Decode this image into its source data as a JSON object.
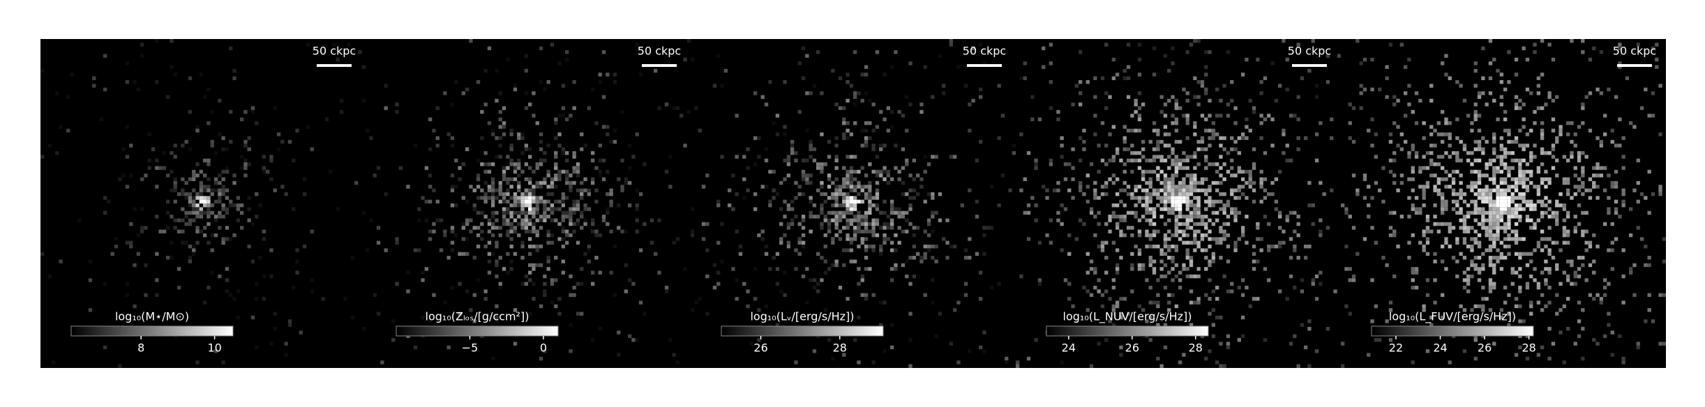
{
  "panels": [
    {
      "scale_label": "50 ckpc",
      "colorbar": {
        "label": "log₁₀(M⋆/M⊙)",
        "lim": [
          6.1,
          10.5
        ],
        "ticks": [
          8,
          10
        ]
      }
    },
    {
      "scale_label": "50 ckpc",
      "colorbar": {
        "label": "log₁₀(Zₗₒₛ/[g/ccm²])",
        "lim": [
          -10,
          1
        ],
        "ticks": [
          {
            "value": -5,
            "label": "−5"
          },
          0
        ]
      }
    },
    {
      "scale_label": "50 ckpc",
      "colorbar": {
        "label": "log₁₀(Lᵥ/[erg/s/Hz])",
        "lim": [
          25,
          29.1
        ],
        "ticks": [
          26,
          28
        ]
      }
    },
    {
      "scale_label": "50 ckpc",
      "colorbar": {
        "label": "log₁₀(L_NUV/[erg/s/Hz])",
        "lim": [
          23.3,
          28.4
        ],
        "ticks": [
          24,
          26,
          28
        ]
      }
    },
    {
      "scale_label": "50 ckpc",
      "colorbar": {
        "label": "log₁₀(L_FUV/[erg/s/Hz])",
        "lim": [
          20.9,
          28.2
        ],
        "ticks": [
          22,
          24,
          26,
          28
        ]
      }
    }
  ]
}
